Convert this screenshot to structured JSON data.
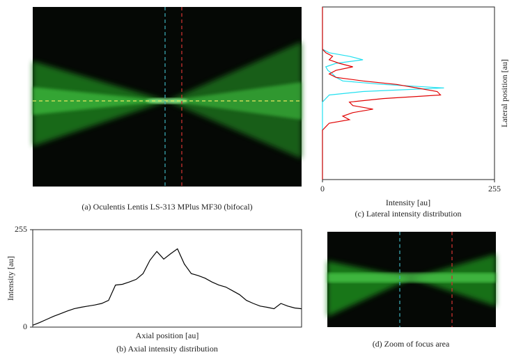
{
  "panel_a": {
    "caption": "(a) Oculentis Lentis LS-313 MPlus MF30 (bifocal)"
  },
  "panel_b": {
    "caption": "(b) Axial intensity distribution",
    "xlabel": "Axial position [au]",
    "ylabel": "Intensity [au]",
    "ylim": [
      0,
      255
    ],
    "yticks": [
      0,
      255
    ],
    "color": "#000000",
    "values": [
      5,
      12,
      20,
      28,
      35,
      42,
      48,
      52,
      55,
      58,
      62,
      70,
      110,
      112,
      118,
      125,
      140,
      175,
      198,
      178,
      192,
      205,
      165,
      140,
      135,
      128,
      118,
      110,
      105,
      95,
      85,
      70,
      62,
      55,
      52,
      48,
      62,
      55,
      50,
      48
    ]
  },
  "panel_c": {
    "caption": "(c) Lateral intensity distribution",
    "xlabel": "Intensity [au]",
    "ylabel": "Lateral position [au]",
    "xlim": [
      0,
      255
    ],
    "xticks": [
      0,
      255
    ],
    "series": [
      {
        "color": "#22e0f0",
        "values": [
          0,
          0,
          0,
          0,
          0,
          0,
          0,
          0,
          0,
          0,
          0,
          0,
          0,
          10,
          40,
          60,
          20,
          5,
          8,
          15,
          20,
          30,
          90,
          180,
          60,
          10,
          5,
          0,
          0,
          0,
          0,
          0,
          0,
          0,
          0,
          0,
          0,
          0,
          0,
          0,
          0,
          0,
          0,
          0,
          0,
          0,
          0,
          0,
          0,
          0
        ]
      },
      {
        "color": "#e00000",
        "values": [
          0,
          0,
          0,
          0,
          0,
          0,
          0,
          0,
          0,
          0,
          0,
          0,
          0,
          5,
          15,
          10,
          25,
          45,
          20,
          10,
          20,
          60,
          110,
          140,
          170,
          175,
          90,
          40,
          45,
          75,
          45,
          30,
          40,
          10,
          5,
          0,
          0,
          0,
          0,
          0,
          0,
          0,
          0,
          0,
          0,
          0,
          0,
          0,
          0,
          0
        ]
      }
    ]
  },
  "panel_d": {
    "caption": "(d) Zoom of focus area"
  }
}
